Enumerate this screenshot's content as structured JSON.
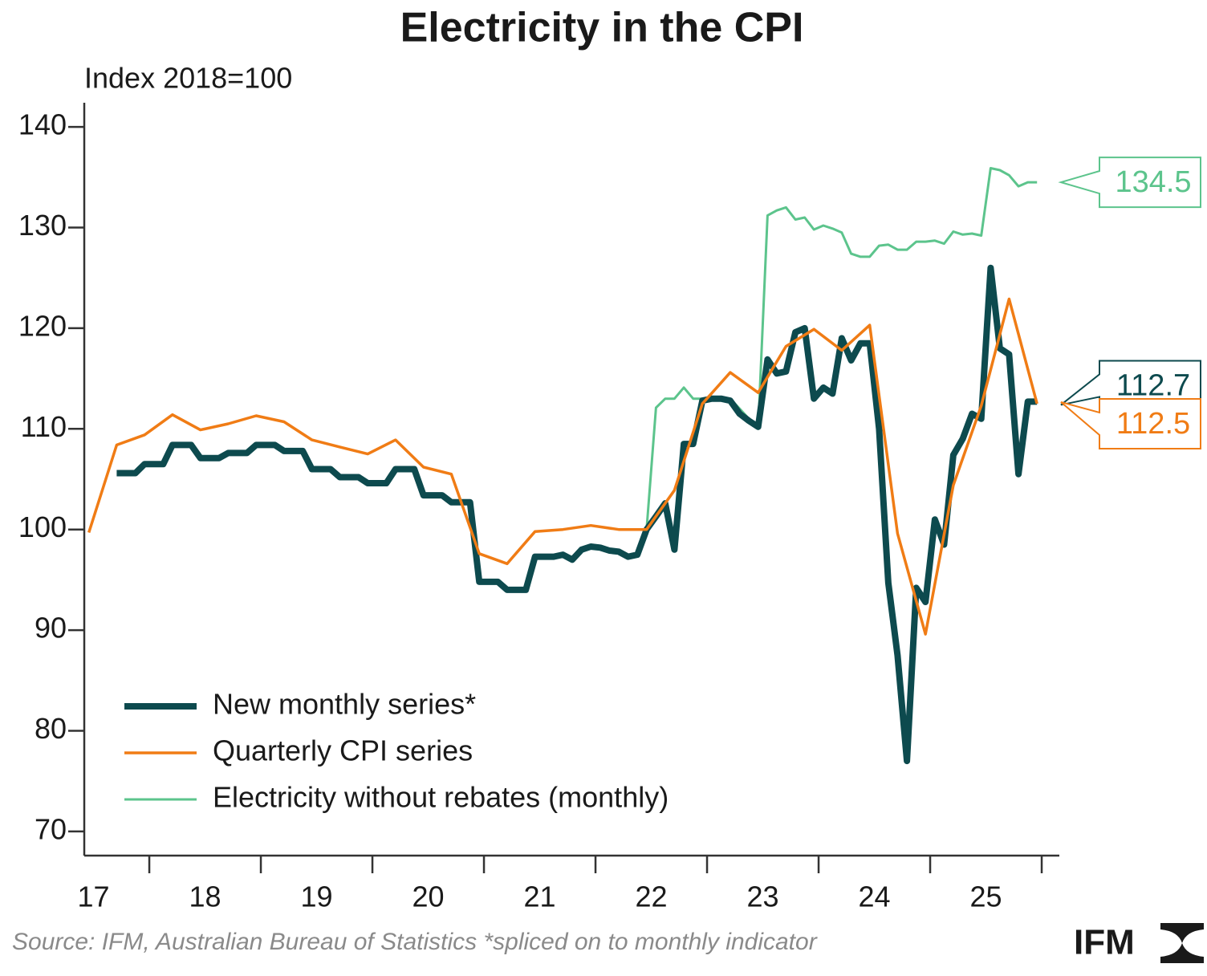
{
  "chart_data": {
    "type": "line",
    "title": "Electricity in the CPI",
    "y_label": "Index 2018=100",
    "source": "Source: IFM, Australian Bureau of Statistics *spliced on to monthly indicator",
    "logo": "IFM",
    "xlim": [
      2017.417,
      2026.158
    ],
    "ylim": [
      67.6,
      142.4
    ],
    "yticks": [
      70,
      80,
      90,
      100,
      110,
      120,
      130,
      140
    ],
    "xticks": [
      {
        "value": 2017.5,
        "label": "17"
      },
      {
        "value": 2018.5,
        "label": "18"
      },
      {
        "value": 2019.5,
        "label": "19"
      },
      {
        "value": 2020.5,
        "label": "20"
      },
      {
        "value": 2021.5,
        "label": "21"
      },
      {
        "value": 2022.5,
        "label": "22"
      },
      {
        "value": 2023.5,
        "label": "23"
      },
      {
        "value": 2024.5,
        "label": "24"
      },
      {
        "value": 2025.5,
        "label": "25"
      }
    ],
    "xtick_marks": [
      2018,
      2019,
      2020,
      2021,
      2022,
      2023,
      2024,
      2025,
      2026
    ],
    "series": [
      {
        "name": "New monthly series*",
        "color": "#0d4a4e",
        "x": [
          2017.708,
          2017.792,
          2017.875,
          2017.958,
          2018.042,
          2018.125,
          2018.208,
          2018.292,
          2018.375,
          2018.458,
          2018.542,
          2018.625,
          2018.708,
          2018.792,
          2018.875,
          2018.958,
          2019.042,
          2019.125,
          2019.208,
          2019.292,
          2019.375,
          2019.458,
          2019.542,
          2019.625,
          2019.708,
          2019.792,
          2019.875,
          2019.958,
          2020.042,
          2020.125,
          2020.208,
          2020.292,
          2020.375,
          2020.458,
          2020.542,
          2020.625,
          2020.708,
          2020.792,
          2020.875,
          2020.958,
          2021.042,
          2021.125,
          2021.208,
          2021.292,
          2021.375,
          2021.458,
          2021.542,
          2021.625,
          2021.708,
          2021.792,
          2021.875,
          2021.958,
          2022.042,
          2022.125,
          2022.208,
          2022.292,
          2022.375,
          2022.458,
          2022.542,
          2022.625,
          2022.708,
          2022.792,
          2022.875,
          2022.958,
          2023.042,
          2023.125,
          2023.208,
          2023.292,
          2023.375,
          2023.458,
          2023.542,
          2023.625,
          2023.708,
          2023.792,
          2023.875,
          2023.958,
          2024.042,
          2024.125,
          2024.208,
          2024.292,
          2024.375,
          2024.458,
          2024.542,
          2024.625,
          2024.708,
          2024.792,
          2024.875,
          2024.958,
          2025.042,
          2025.125,
          2025.208,
          2025.292,
          2025.375,
          2025.458,
          2025.542,
          2025.625,
          2025.708,
          2025.792,
          2025.875,
          2025.958
        ],
        "values": [
          105.6,
          105.6,
          105.6,
          106.5,
          106.5,
          106.5,
          108.4,
          108.4,
          108.4,
          107.1,
          107.1,
          107.1,
          107.6,
          107.6,
          107.6,
          108.4,
          108.4,
          108.4,
          107.8,
          107.8,
          107.8,
          106.0,
          106.0,
          106.0,
          105.2,
          105.2,
          105.2,
          104.6,
          104.6,
          104.6,
          106.0,
          106.0,
          106.0,
          103.4,
          103.4,
          103.4,
          102.7,
          102.7,
          102.7,
          94.8,
          94.8,
          94.8,
          94.0,
          94.0,
          94.0,
          97.3,
          97.3,
          97.3,
          97.5,
          97.0,
          98.0,
          98.3,
          98.2,
          97.9,
          97.8,
          97.3,
          97.5,
          100.0,
          101.3,
          102.6,
          98.0,
          108.5,
          108.5,
          112.8,
          113.0,
          113.0,
          112.8,
          111.5,
          110.8,
          110.2,
          116.9,
          115.5,
          115.7,
          119.6,
          120.0,
          113.0,
          114.1,
          113.5,
          119.0,
          116.8,
          118.5,
          118.5,
          110.0,
          94.7,
          87.5,
          77.0,
          94.2,
          92.8,
          101.0,
          98.5,
          107.4,
          109.0,
          111.5,
          111.0,
          126.0,
          118.0,
          117.4,
          105.5,
          112.7,
          112.7
        ]
      },
      {
        "name": "Quarterly CPI series",
        "color": "#f07c15",
        "x": [
          2017.458,
          2017.708,
          2017.958,
          2018.208,
          2018.458,
          2018.708,
          2018.958,
          2019.208,
          2019.458,
          2019.708,
          2019.958,
          2020.208,
          2020.458,
          2020.708,
          2020.958,
          2021.208,
          2021.458,
          2021.708,
          2021.958,
          2022.208,
          2022.458,
          2022.708,
          2022.958,
          2023.208,
          2023.458,
          2023.708,
          2023.958,
          2024.208,
          2024.458,
          2024.708,
          2024.958,
          2025.208,
          2025.458,
          2025.708,
          2025.958
        ],
        "values": [
          99.7,
          108.4,
          109.4,
          111.4,
          109.9,
          110.5,
          111.3,
          110.7,
          108.9,
          108.2,
          107.5,
          108.9,
          106.2,
          105.5,
          97.6,
          96.6,
          99.8,
          100.0,
          100.4,
          100.0,
          100.0,
          103.9,
          112.5,
          115.6,
          113.6,
          118.2,
          119.9,
          117.8,
          120.3,
          99.6,
          89.6,
          104.4,
          112.3,
          122.9,
          112.5
        ]
      },
      {
        "name": "Electricity without rebates (monthly)",
        "color": "#5cc48c",
        "x": [
          2022.458,
          2022.542,
          2022.625,
          2022.708,
          2022.792,
          2022.875,
          2022.958,
          2023.042,
          2023.125,
          2023.208,
          2023.292,
          2023.375,
          2023.458,
          2023.542,
          2023.625,
          2023.708,
          2023.792,
          2023.875,
          2023.958,
          2024.042,
          2024.125,
          2024.208,
          2024.292,
          2024.375,
          2024.458,
          2024.542,
          2024.625,
          2024.708,
          2024.792,
          2024.875,
          2024.958,
          2025.042,
          2025.125,
          2025.208,
          2025.292,
          2025.375,
          2025.458,
          2025.542,
          2025.625,
          2025.708,
          2025.792,
          2025.875,
          2025.958
        ],
        "values": [
          100.0,
          112.1,
          113.0,
          113.0,
          114.1,
          113.0,
          113.0,
          113.0,
          113.0,
          113.0,
          112.0,
          111.0,
          110.0,
          131.2,
          131.7,
          132.0,
          130.8,
          131.0,
          129.8,
          130.2,
          129.9,
          129.5,
          127.4,
          127.1,
          127.1,
          128.2,
          128.3,
          127.8,
          127.8,
          128.6,
          128.6,
          128.7,
          128.4,
          129.6,
          129.3,
          129.4,
          129.2,
          135.9,
          135.7,
          135.2,
          134.1,
          134.5,
          134.5
        ]
      }
    ]
  }
}
